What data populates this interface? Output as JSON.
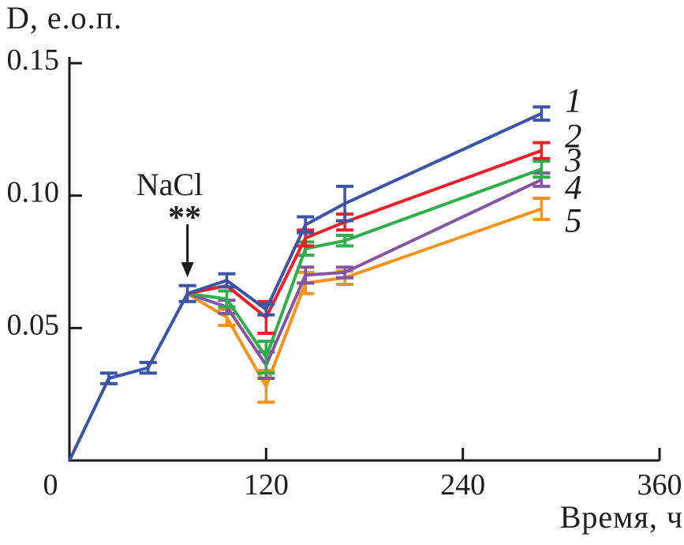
{
  "figure": {
    "background": "#ffffff",
    "text_color": "#1e1e1e",
    "axis_color": "#1a1a1a"
  },
  "chart_data": {
    "type": "line",
    "title": "",
    "ylabel": "D, е.о.п.",
    "xlabel": "Время, ч",
    "xlim": [
      0,
      360
    ],
    "ylim": [
      0,
      0.15
    ],
    "x_ticks": [
      0,
      120,
      240,
      360
    ],
    "x_tick_labels": [
      "0",
      "120",
      "240",
      "360"
    ],
    "y_ticks": [
      0.05,
      0.1,
      0.15
    ],
    "y_tick_labels": [
      "0.05",
      "0.10",
      "0.15"
    ],
    "grid": false,
    "legend_position": "end-of-line-numbers",
    "error_bars": true,
    "annotation": {
      "text": "NaCl",
      "symbol": "**",
      "x": 72,
      "points_to_y": 0.066
    },
    "series": [
      {
        "name": "1",
        "color": "#3b54a5",
        "x": [
          0,
          24,
          48,
          72,
          96,
          120,
          144,
          168,
          288
        ],
        "y": [
          0,
          0.031,
          0.035,
          0.063,
          0.068,
          0.057,
          0.089,
          0.097,
          0.131
        ],
        "yerr": [
          0,
          0.002,
          0.002,
          0.003,
          0.0025,
          0.002,
          0.003,
          0.0065,
          0.0025
        ]
      },
      {
        "name": "2",
        "color": "#ec2028",
        "x": [
          72,
          96,
          120,
          144,
          168,
          288
        ],
        "y": [
          0.063,
          0.066,
          0.054,
          0.084,
          0.09,
          0.117
        ],
        "yerr": [
          0,
          0,
          0.006,
          0.003,
          0.003,
          0.003
        ]
      },
      {
        "name": "3",
        "color": "#2fae4c",
        "x": [
          72,
          96,
          120,
          144,
          168,
          288
        ],
        "y": [
          0.063,
          0.061,
          0.039,
          0.08,
          0.083,
          0.11
        ],
        "yerr": [
          0,
          0.003,
          0.006,
          0.0025,
          0.002,
          0.003
        ]
      },
      {
        "name": "4",
        "color": "#8456a2",
        "x": [
          72,
          96,
          120,
          144,
          168,
          288
        ],
        "y": [
          0.063,
          0.058,
          0.036,
          0.07,
          0.071,
          0.106
        ],
        "yerr": [
          0,
          0.0025,
          0.005,
          0.003,
          0.002,
          0.0025
        ]
      },
      {
        "name": "5",
        "color": "#f7941d",
        "x": [
          72,
          96,
          120,
          144,
          168,
          288
        ],
        "y": [
          0.063,
          0.054,
          0.028,
          0.067,
          0.069,
          0.095
        ],
        "yerr": [
          0,
          0.003,
          0.006,
          0.004,
          0.0025,
          0.004
        ]
      }
    ]
  }
}
